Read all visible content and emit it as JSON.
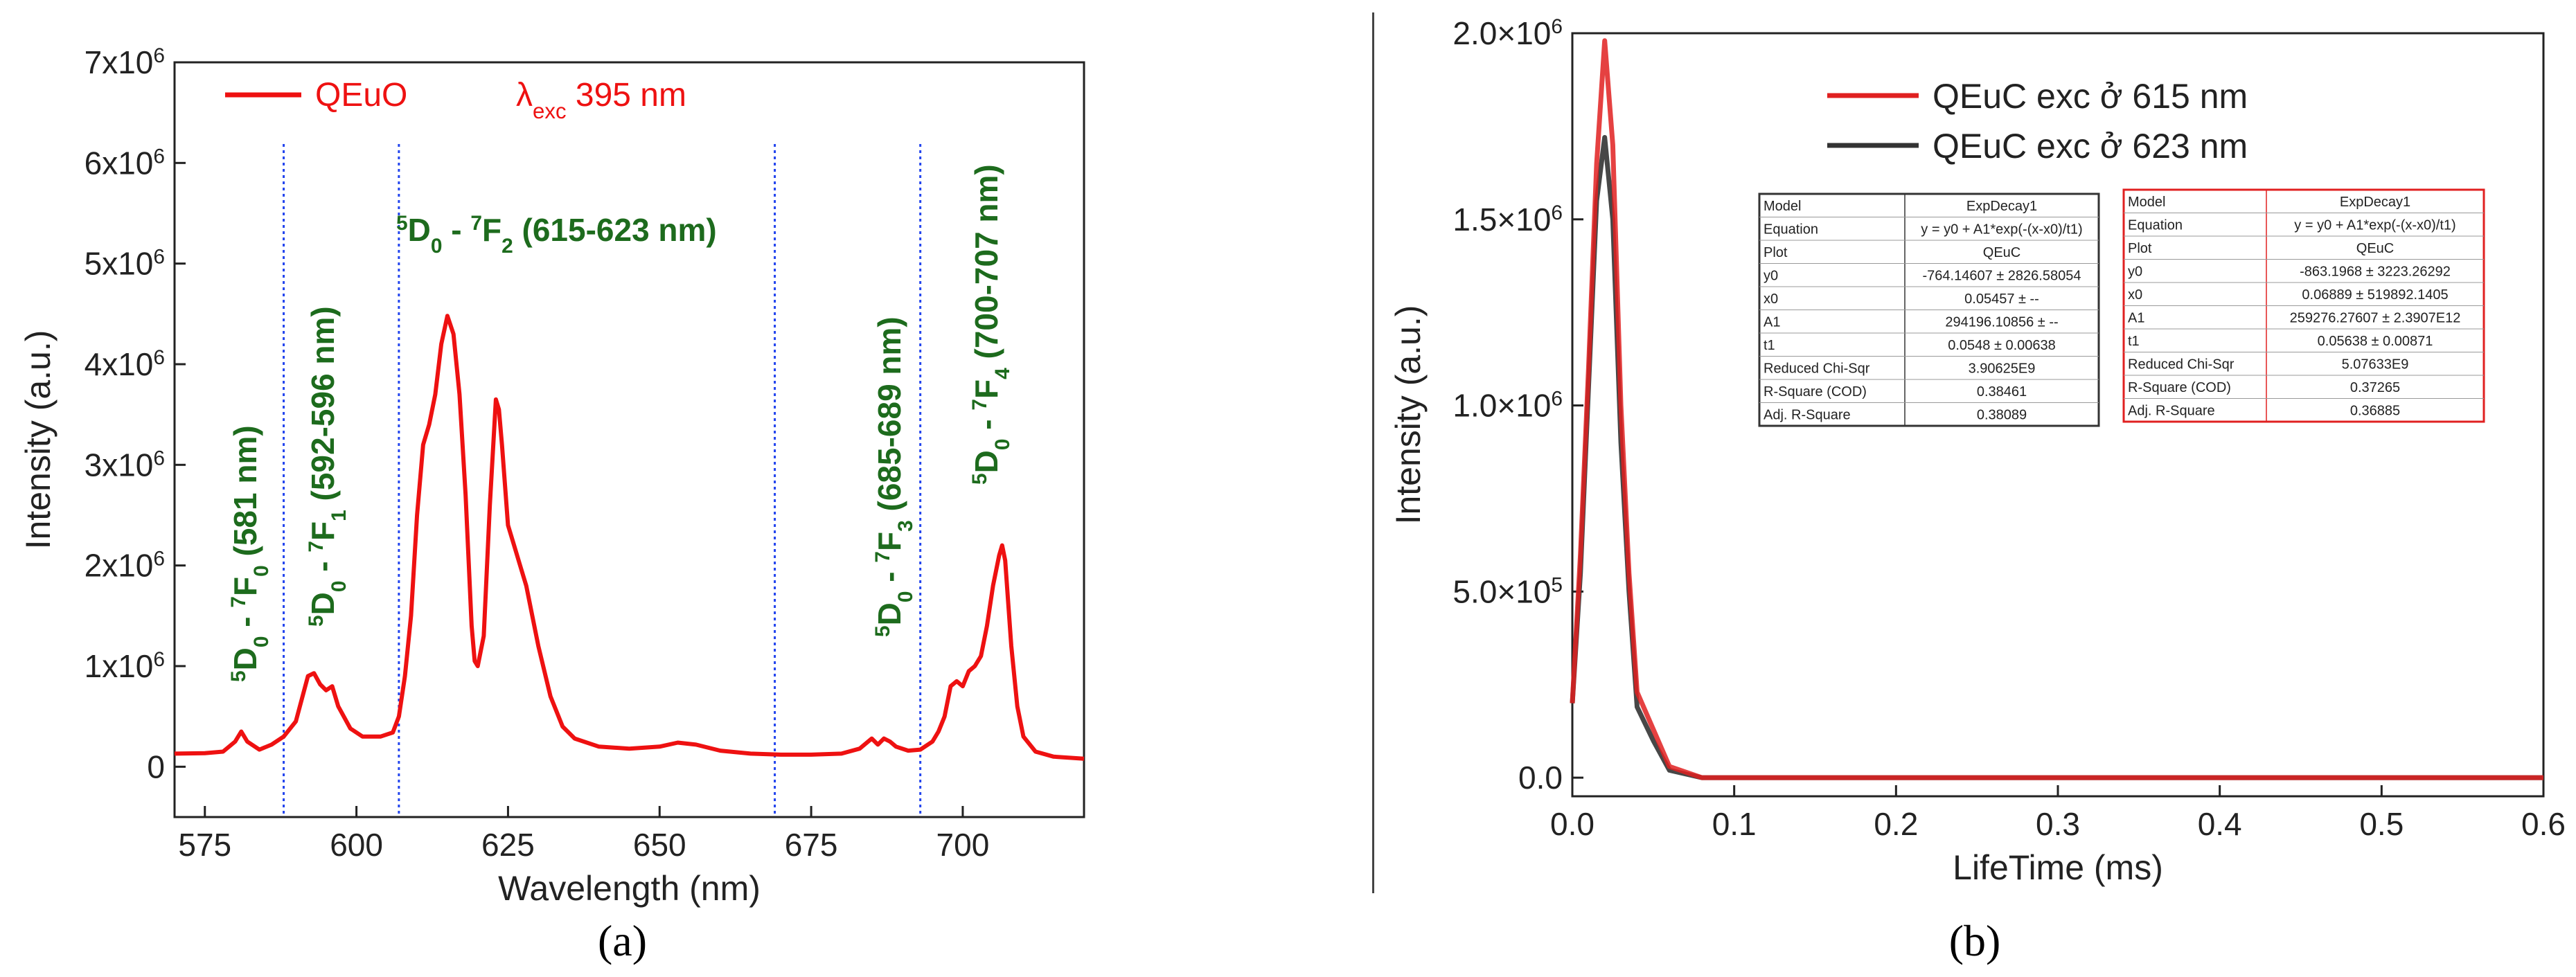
{
  "chart_data": [
    {
      "panel": "(a)",
      "type": "line",
      "xlabel": "Wavelength (nm)",
      "ylabel": "Intensity (a.u.)",
      "xlim": [
        570,
        720
      ],
      "ylim": [
        -500000,
        7000000
      ],
      "x_ticks": [
        575,
        600,
        625,
        650,
        675,
        700
      ],
      "y_ticks": [
        {
          "value": 0,
          "base": "0",
          "exp": ""
        },
        {
          "value": 1000000,
          "base": "1x10",
          "exp": "6"
        },
        {
          "value": 2000000,
          "base": "2x10",
          "exp": "6"
        },
        {
          "value": 3000000,
          "base": "3x10",
          "exp": "6"
        },
        {
          "value": 4000000,
          "base": "4x10",
          "exp": "6"
        },
        {
          "value": 5000000,
          "base": "5x10",
          "exp": "6"
        },
        {
          "value": 6000000,
          "base": "6x10",
          "exp": "6"
        },
        {
          "value": 7000000,
          "base": "7x10",
          "exp": "6"
        }
      ],
      "legend": {
        "series_name": "QEuO",
        "excitation_symbol": "λ",
        "excitation_sub": "exc",
        "excitation_value": "395 nm"
      },
      "dividers_x": [
        588,
        607,
        669,
        693
      ],
      "annotations": [
        {
          "sup1": "5",
          "mid1": "D",
          "sub1": "0",
          "dash": " - ",
          "sup2": "7",
          "mid2": "F",
          "sub2": "2",
          "rest": " (615-623 nm)"
        },
        {
          "sup1": "5",
          "mid1": "D",
          "sub1": "0",
          "dash": " - ",
          "sup2": "7",
          "mid2": "F",
          "sub2": "0",
          "rest": " (581 nm)"
        },
        {
          "sup1": "5",
          "mid1": "D",
          "sub1": "0",
          "dash": " - ",
          "sup2": "7",
          "mid2": "F",
          "sub2": "1",
          "rest": " (592-596 nm)"
        },
        {
          "sup1": "5",
          "mid1": "D",
          "sub1": "0",
          "dash": " - ",
          "sup2": "7",
          "mid2": "F",
          "sub2": "3",
          "rest": " (685-689 nm)"
        },
        {
          "sup1": "5",
          "mid1": "D",
          "sub1": "0",
          "dash": " - ",
          "sup2": "7",
          "mid2": "F",
          "sub2": "4",
          "rest": " (700-707 nm)"
        }
      ],
      "series": [
        {
          "name": "QEuO",
          "color": "#ee1111",
          "points": [
            [
              570,
              130000
            ],
            [
              575,
              135000
            ],
            [
              578,
              150000
            ],
            [
              580,
              250000
            ],
            [
              581,
              350000
            ],
            [
              582,
              250000
            ],
            [
              584,
              170000
            ],
            [
              586,
              220000
            ],
            [
              588,
              300000
            ],
            [
              590,
              450000
            ],
            [
              592,
              900000
            ],
            [
              593,
              930000
            ],
            [
              594,
              820000
            ],
            [
              595,
              760000
            ],
            [
              596,
              800000
            ],
            [
              597,
              600000
            ],
            [
              599,
              380000
            ],
            [
              601,
              300000
            ],
            [
              604,
              300000
            ],
            [
              606,
              340000
            ],
            [
              607,
              500000
            ],
            [
              608,
              900000
            ],
            [
              609,
              1500000
            ],
            [
              610,
              2500000
            ],
            [
              611,
              3200000
            ],
            [
              612,
              3400000
            ],
            [
              613,
              3700000
            ],
            [
              614,
              4200000
            ],
            [
              615,
              4480000
            ],
            [
              616,
              4300000
            ],
            [
              617,
              3700000
            ],
            [
              618,
              2700000
            ],
            [
              619,
              1400000
            ],
            [
              619.5,
              1050000
            ],
            [
              620,
              1000000
            ],
            [
              621,
              1300000
            ],
            [
              622,
              2600000
            ],
            [
              623,
              3650000
            ],
            [
              623.5,
              3550000
            ],
            [
              624,
              3200000
            ],
            [
              625,
              2400000
            ],
            [
              626,
              2200000
            ],
            [
              627,
              2000000
            ],
            [
              628,
              1800000
            ],
            [
              630,
              1200000
            ],
            [
              632,
              700000
            ],
            [
              634,
              400000
            ],
            [
              636,
              280000
            ],
            [
              640,
              200000
            ],
            [
              645,
              180000
            ],
            [
              650,
              200000
            ],
            [
              653,
              240000
            ],
            [
              656,
              220000
            ],
            [
              660,
              160000
            ],
            [
              665,
              130000
            ],
            [
              670,
              120000
            ],
            [
              675,
              120000
            ],
            [
              680,
              130000
            ],
            [
              683,
              180000
            ],
            [
              685,
              280000
            ],
            [
              686,
              220000
            ],
            [
              687,
              280000
            ],
            [
              688,
              250000
            ],
            [
              689,
              200000
            ],
            [
              691,
              160000
            ],
            [
              693,
              170000
            ],
            [
              695,
              250000
            ],
            [
              696,
              350000
            ],
            [
              697,
              500000
            ],
            [
              698,
              800000
            ],
            [
              699,
              850000
            ],
            [
              700,
              800000
            ],
            [
              701,
              950000
            ],
            [
              702,
              1000000
            ],
            [
              703,
              1100000
            ],
            [
              704,
              1400000
            ],
            [
              705,
              1800000
            ],
            [
              706,
              2100000
            ],
            [
              706.5,
              2200000
            ],
            [
              707,
              2050000
            ],
            [
              708,
              1200000
            ],
            [
              709,
              600000
            ],
            [
              710,
              300000
            ],
            [
              712,
              150000
            ],
            [
              715,
              100000
            ],
            [
              720,
              80000
            ]
          ]
        }
      ],
      "panel_label": "(a)"
    },
    {
      "panel": "(b)",
      "type": "line",
      "xlabel": "LifeTime (ms)",
      "ylabel": "Intensity (a.u.)",
      "xlim": [
        0,
        0.6
      ],
      "ylim": [
        -50000,
        2000000
      ],
      "x_ticks": [
        {
          "value": 0,
          "label": "0.0"
        },
        {
          "value": 0.1,
          "label": "0.1"
        },
        {
          "value": 0.2,
          "label": "0.2"
        },
        {
          "value": 0.3,
          "label": "0.3"
        },
        {
          "value": 0.4,
          "label": "0.4"
        },
        {
          "value": 0.5,
          "label": "0.5"
        },
        {
          "value": 0.6,
          "label": "0.6"
        }
      ],
      "y_ticks": [
        {
          "value": 0,
          "base": "0.0",
          "exp": ""
        },
        {
          "value": 500000,
          "base": "5.0×10",
          "exp": "5"
        },
        {
          "value": 1000000,
          "base": "1.0×10",
          "exp": "6"
        },
        {
          "value": 1500000,
          "base": "1.5×10",
          "exp": "6"
        },
        {
          "value": 2000000,
          "base": "2.0×10",
          "exp": "6"
        }
      ],
      "series": [
        {
          "name": "QEuC exc ở 615 nm",
          "color": "#e02020",
          "points": [
            [
              0,
              200000
            ],
            [
              0.005,
              600000
            ],
            [
              0.01,
              1100000
            ],
            [
              0.015,
              1650000
            ],
            [
              0.02,
              1980000
            ],
            [
              0.025,
              1700000
            ],
            [
              0.03,
              1000000
            ],
            [
              0.035,
              550000
            ],
            [
              0.04,
              230000
            ],
            [
              0.05,
              130000
            ],
            [
              0.06,
              30000
            ],
            [
              0.08,
              0
            ],
            [
              0.2,
              0
            ],
            [
              0.6,
              0
            ]
          ]
        },
        {
          "name": "QEuC exc ở 623 nm",
          "color": "#333333",
          "points": [
            [
              0,
              200000
            ],
            [
              0.005,
              550000
            ],
            [
              0.01,
              1050000
            ],
            [
              0.015,
              1550000
            ],
            [
              0.02,
              1720000
            ],
            [
              0.025,
              1500000
            ],
            [
              0.03,
              900000
            ],
            [
              0.035,
              500000
            ],
            [
              0.04,
              190000
            ],
            [
              0.05,
              100000
            ],
            [
              0.06,
              20000
            ],
            [
              0.08,
              0
            ],
            [
              0.2,
              0
            ],
            [
              0.6,
              0
            ]
          ]
        }
      ],
      "fit_tables": [
        {
          "border_color": "#333333",
          "rows": [
            [
              "Model",
              "ExpDecay1"
            ],
            [
              "Equation",
              "y = y0 + A1*exp(-(x-x0)/t1)"
            ],
            [
              "Plot",
              "QEuC"
            ],
            [
              "y0",
              "-764.14607 ± 2826.58054"
            ],
            [
              "x0",
              "0.05457 ± --"
            ],
            [
              "A1",
              "294196.10856 ± --"
            ],
            [
              "t1",
              "0.0548 ± 0.00638"
            ],
            [
              "Reduced Chi-Sqr",
              "3.90625E9"
            ],
            [
              "R-Square (COD)",
              "0.38461"
            ],
            [
              "Adj. R-Square",
              "0.38089"
            ]
          ]
        },
        {
          "border_color": "#e02020",
          "rows": [
            [
              "Model",
              "ExpDecay1"
            ],
            [
              "Equation",
              "y = y0 + A1*exp(-(x-x0)/t1)"
            ],
            [
              "Plot",
              "QEuC"
            ],
            [
              "y0",
              "-863.1968 ± 3223.26292"
            ],
            [
              "x0",
              "0.06889 ± 519892.1405"
            ],
            [
              "A1",
              "259276.27607 ± 2.3907E12"
            ],
            [
              "t1",
              "0.05638 ± 0.00871"
            ],
            [
              "Reduced Chi-Sqr",
              "5.07633E9"
            ],
            [
              "R-Square (COD)",
              "0.37265"
            ],
            [
              "Adj. R-Square",
              "0.36885"
            ]
          ]
        }
      ],
      "panel_label": "(b)"
    }
  ]
}
